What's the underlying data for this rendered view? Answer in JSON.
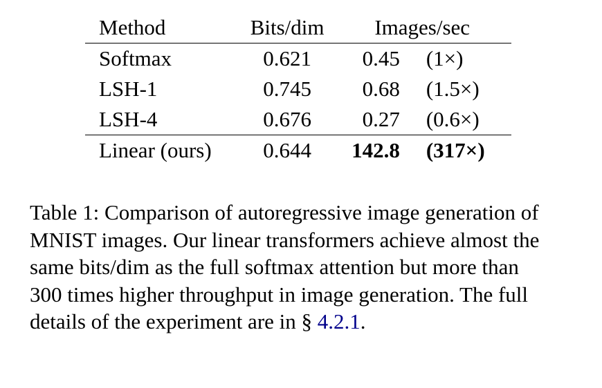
{
  "table": {
    "headers": {
      "method": "Method",
      "bits": "Bits/dim",
      "images": "Images/sec"
    },
    "rows": [
      {
        "method": "Softmax",
        "bits": "0.621",
        "ips": "0.45",
        "ratio": "(1×)"
      },
      {
        "method": "LSH-1",
        "bits": "0.745",
        "ips": "0.68",
        "ratio": "(1.5×)"
      },
      {
        "method": "LSH-4",
        "bits": "0.676",
        "ips": "0.27",
        "ratio": "(0.6×)"
      },
      {
        "method": "Linear (ours)",
        "bits": "0.644",
        "ips": "142.8",
        "ratio": "(317×)"
      }
    ]
  },
  "caption": {
    "line1": "Table 1: Comparison of autoregressive image generation of",
    "line2": "MNIST images. Our linear transformers achieve almost the",
    "line3": "same bits/dim as the full softmax attention but more than",
    "line4": "300 times higher throughput in image generation. The full",
    "line5_prefix": "details of the experiment are in § ",
    "line5_ref": "4.2.1",
    "line5_suffix": ".",
    "link_color": "#00008b"
  }
}
